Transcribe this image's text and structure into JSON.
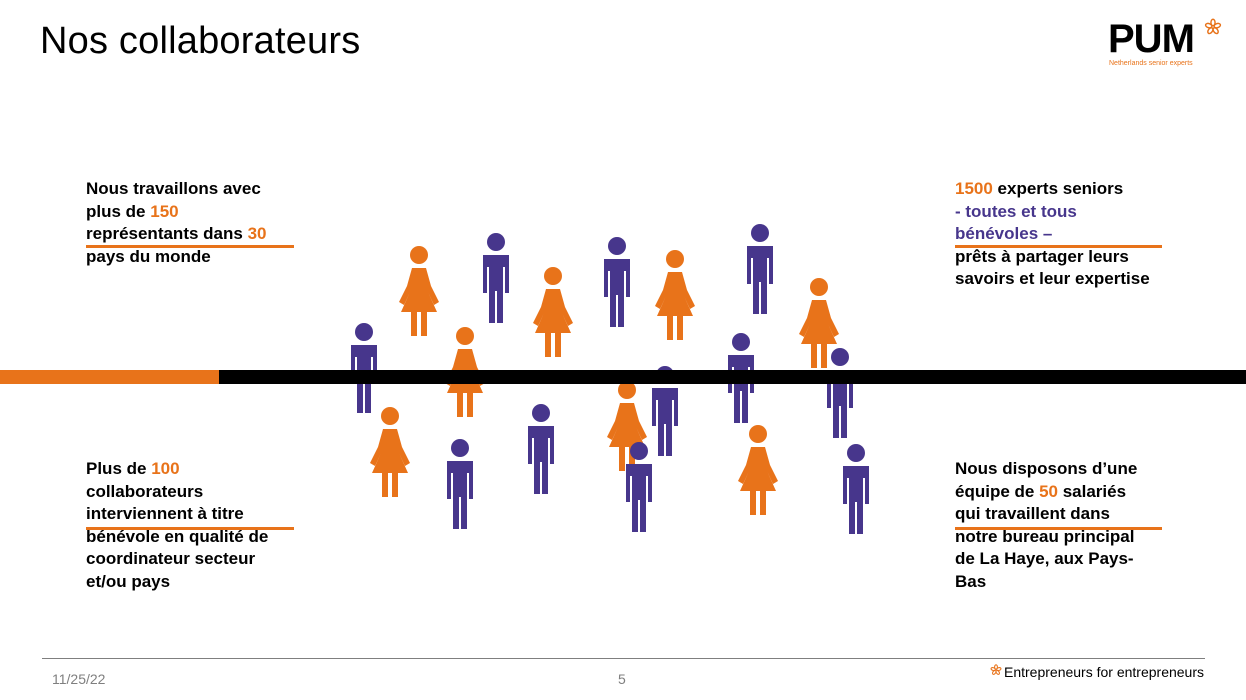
{
  "slide": {
    "title": "Nos collaborateurs"
  },
  "logo": {
    "word": "PUM",
    "tagline": "Netherlands senior experts"
  },
  "colors": {
    "orange": "#e8731a",
    "purple": "#47368c",
    "black": "#000000"
  },
  "blocks": {
    "top_left": {
      "l1": "Nous travaillons avec",
      "l2a": "plus de ",
      "l2n": "150",
      "l3a": "représentants dans ",
      "l3n": "30",
      "l4": "pays du monde"
    },
    "top_right": {
      "l1n": "1500",
      "l1a": " experts seniors",
      "l2": "- toutes et tous",
      "l3": "bénévoles –",
      "l4": "prêts à partager leurs",
      "l5": "savoirs et leur expertise"
    },
    "bottom_left": {
      "l1a": "Plus de ",
      "l1n": "100",
      "l2": "collaborateurs",
      "l3": "interviennent à titre",
      "l4": "bénévole en qualité de",
      "l5": "coordinateur secteur",
      "l6": "et/ou pays"
    },
    "bottom_right": {
      "l1": "Nous disposons d’une",
      "l2a": "équipe de ",
      "l2n": "50",
      "l2b": " salariés",
      "l3": "qui travaillent dans",
      "l4": "notre bureau principal",
      "l5": "de La Haye, aux Pays-",
      "l6": "Bas"
    }
  },
  "footer": {
    "date": "11/25/22",
    "page": "5",
    "tagline": "Entrepreneurs for entrepreneurs"
  }
}
